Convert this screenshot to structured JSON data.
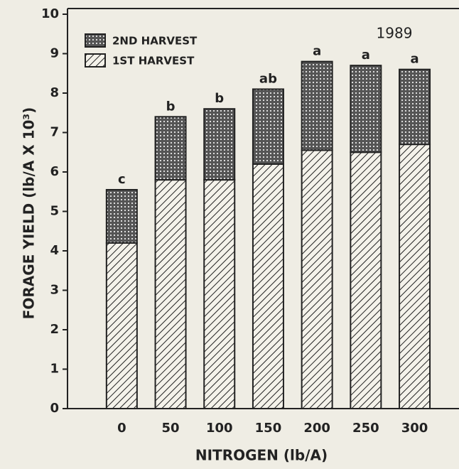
{
  "chart_data": {
    "type": "stacked_bar",
    "title": "1989",
    "x_label": "NITROGEN (lb/A)",
    "y_label": "FORAGE YIELD (lb/A X 10³)",
    "categories": [
      "0",
      "50",
      "100",
      "150",
      "200",
      "250",
      "300"
    ],
    "series": [
      {
        "name": "1ST HARVEST",
        "color": "#222222",
        "pattern": "hatch",
        "values": [
          4.2,
          5.8,
          5.8,
          6.2,
          6.55,
          6.5,
          6.7
        ]
      },
      {
        "name": "2ND HARVEST",
        "color": "#222222",
        "pattern": "crosshatch",
        "values": [
          1.35,
          1.6,
          1.8,
          1.9,
          2.25,
          2.2,
          1.9
        ]
      }
    ],
    "annotations": [
      "c",
      "b",
      "b",
      "ab",
      "a",
      "a",
      "a"
    ],
    "ylim": [
      0,
      10
    ],
    "yticks": [
      0,
      1,
      2,
      3,
      4,
      5,
      6,
      7,
      8,
      9,
      10
    ],
    "legend": "top-left"
  }
}
